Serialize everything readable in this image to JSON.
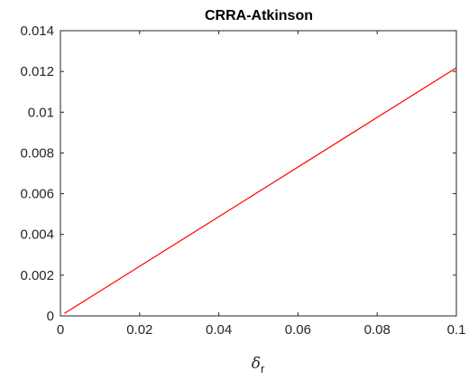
{
  "chart_data": {
    "type": "line",
    "title": "CRRA-Atkinson",
    "xlabel": "δ",
    "xlabel_subscript": "r",
    "ylabel": "",
    "xlim": [
      0,
      0.1
    ],
    "ylim": [
      0,
      0.014
    ],
    "x_ticks": [
      0,
      0.02,
      0.04,
      0.06,
      0.08,
      0.1
    ],
    "x_tick_labels": [
      "0",
      "0.02",
      "0.04",
      "0.06",
      "0.08",
      "0.1"
    ],
    "y_ticks": [
      0,
      0.002,
      0.004,
      0.006,
      0.008,
      0.01,
      0.012,
      0.014
    ],
    "y_tick_labels": [
      "0",
      "0.002",
      "0.004",
      "0.006",
      "0.008",
      "0.01",
      "0.012",
      "0.014"
    ],
    "grid": false,
    "series": [
      {
        "color": "#ff0000",
        "x": [
          0.001,
          0.1
        ],
        "y": [
          0.00012,
          0.01218
        ]
      }
    ]
  }
}
